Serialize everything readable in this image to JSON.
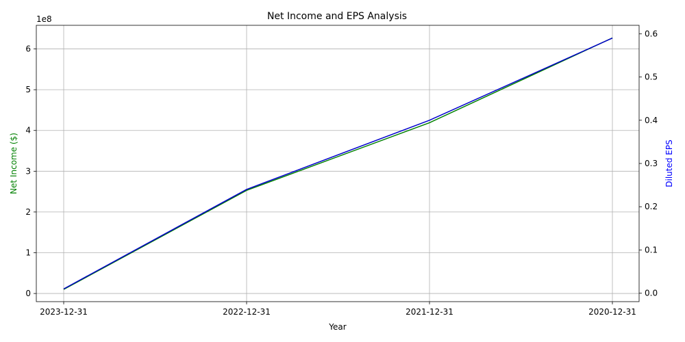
{
  "chart_data": {
    "type": "line",
    "title": "Net Income and EPS Analysis",
    "xlabel": "Year",
    "categories": [
      "2023-12-31",
      "2022-12-31",
      "2021-12-31",
      "2020-12-31"
    ],
    "left_axis": {
      "label": "Net Income ($)",
      "label_color": "#008000",
      "ylim": [
        -20000000,
        658000000
      ],
      "ticks": [
        0,
        100000000,
        200000000,
        300000000,
        400000000,
        500000000,
        600000000
      ],
      "tick_labels": [
        "0",
        "1",
        "2",
        "3",
        "4",
        "5",
        "6"
      ],
      "scale_label": "1e8"
    },
    "right_axis": {
      "label": "Diluted EPS",
      "label_color": "#0000ff",
      "ylim": [
        -0.0195,
        0.6195
      ],
      "ticks": [
        0.0,
        0.1,
        0.2,
        0.3,
        0.4,
        0.5,
        0.6
      ],
      "tick_labels": [
        "0.0",
        "0.1",
        "0.2",
        "0.3",
        "0.4",
        "0.5",
        "0.6"
      ]
    },
    "series": [
      {
        "axis": "left",
        "color": "#008000",
        "values": [
          10000000,
          253000000,
          419000000,
          627000000
        ]
      },
      {
        "axis": "right",
        "color": "#0000cc",
        "values": [
          0.01,
          0.24,
          0.4,
          0.59
        ]
      }
    ],
    "grid": true
  }
}
